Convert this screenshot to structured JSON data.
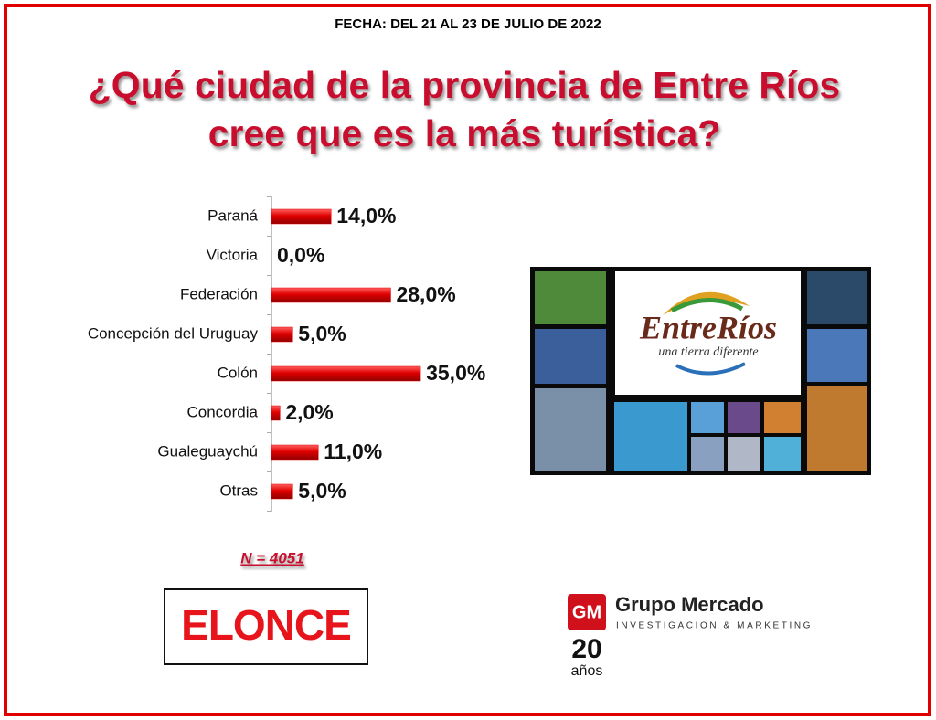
{
  "chart_data": {
    "type": "bar",
    "orientation": "horizontal",
    "title": [
      "¿Qué ciudad de la provincia de Entre Ríos",
      "cree que es la más turística?"
    ],
    "categories": [
      "Paraná",
      "Victoria",
      "Federación",
      "Concepción del Uruguay",
      "Colón",
      "Concordia",
      "Gualeguaychú",
      "Otras"
    ],
    "values": [
      14.0,
      0.0,
      28.0,
      5.0,
      35.0,
      2.0,
      11.0,
      5.0
    ],
    "value_labels": [
      "14,0%",
      "0,0%",
      "28,0%",
      "5,0%",
      "35,0%",
      "2,0%",
      "11,0%",
      "5,0%"
    ],
    "color": "#e00000",
    "note": "N = 4051"
  },
  "header": {
    "date": "FECHA: DEL 21 AL 23 DE JULIO DE 2022"
  },
  "image": {
    "brand": "EntreRíos",
    "slogan": "una tierra diferente"
  },
  "logos": {
    "elonce": "ELONCE",
    "gm_mark": "GM",
    "gm_name": "Grupo Mercado",
    "gm_sub": "INVESTIGACION & MARKETING",
    "gm_years": "20",
    "gm_years_word": "años"
  }
}
